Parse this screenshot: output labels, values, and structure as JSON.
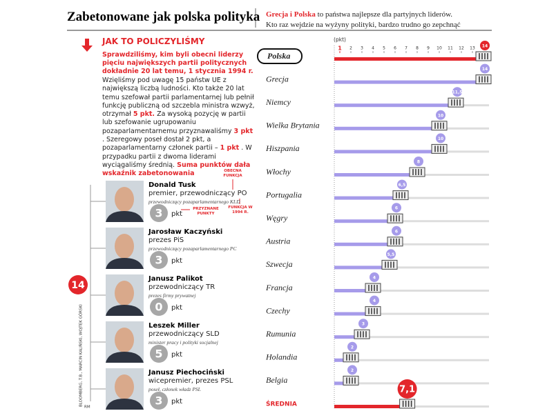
{
  "header": {
    "title": "Zabetonowane jak polska polityka",
    "subtitle": [
      "Grecja i Polska",
      "to państwa najlepsze dla partyjnych liderów.",
      "Kto raz wejdzie na wyżyny polityki, bardzo trudno go zepchnąć"
    ]
  },
  "method": {
    "heading": "JAK TO POLICZYLIŚMY",
    "intro": "Sprawdziliśmy, kim byli obecni liderzy pięciu największych partii politycznych dokładnie 20 lat temu, 1 stycznia 1994 r.",
    "body": [
      {
        "text": "Wzięliśmy pod uwagę 15 państw UE z największą liczbą ludności. Kto także 20 lat temu szefował partii parlamentarnej lub pełnił funkcję publiczną od szczebla ministra wzwyż, otrzymał",
        "highlight": false
      },
      {
        "text": "5 pkt.",
        "highlight": true
      },
      {
        "text": "Za wysoką pozycję w partii lub szefowanie ugrupowaniu pozaparlamentarnemu przyznawaliśmy",
        "highlight": false
      },
      {
        "text": "3 pkt",
        "highlight": true
      },
      {
        "text": ". Szeregowy poseł dostał 2 pkt, a pozaparlamentarny członek partii –",
        "highlight": false
      },
      {
        "text": "1 pkt",
        "highlight": true
      },
      {
        "text": ". W przypadku partii z dwoma liderami wyciągaliśmy średnią.",
        "highlight": false
      },
      {
        "text": "Suma punktów dała wskaźnik zabetonowania",
        "highlight": true
      }
    ]
  },
  "leaders": {
    "total": 14,
    "unit": "pkt",
    "annotations": {
      "current": "OBECNA FUNKCJA",
      "points": "PRZYZNANE PUNKTY",
      "role_1994": "FUNKCJA W 1994 R."
    },
    "items": [
      {
        "name": "Donald Tusk",
        "role": "premier, przewodniczący PO",
        "role_1994": "przewodniczący pozaparlamentarnego KLD",
        "points": 3
      },
      {
        "name": "Jarosław Kaczyński",
        "role": "prezes PiS",
        "role_1994": "przewodniczący pozaparlamentarnego PC",
        "points": 3
      },
      {
        "name": "Janusz Palikot",
        "role": "przewodniczący TR",
        "role_1994": "prezes firmy prywatnej",
        "points": 0
      },
      {
        "name": "Leszek Miller",
        "role": "przewodniczący SLD",
        "role_1994": "minister pracy i polityki socjalnej",
        "points": 5
      },
      {
        "name": "Janusz Piechociński",
        "role": "wicepremier, prezes PSL",
        "role_1994": "poseł, członek władz PSL",
        "points": 3
      }
    ]
  },
  "credit": "BLOOMBERG, T.B., MARCIN KALIŃSKI, WOJTEK GÓRSKI",
  "initials": "RM",
  "chart_data": {
    "type": "bar",
    "orientation": "horizontal",
    "x_label": "(pkt)",
    "categories": [
      "Polska",
      "Grecja",
      "Niemcy",
      "Wielka Brytania",
      "Hiszpania",
      "Włochy",
      "Portugalia",
      "Węgry",
      "Austria",
      "Szwecja",
      "Francja",
      "Czechy",
      "Rumunia",
      "Holandia",
      "Belgia",
      "ŚREDNIA"
    ],
    "values": [
      14,
      14,
      11.5,
      10,
      10,
      8,
      6.5,
      6,
      6,
      5.5,
      4,
      4,
      3,
      2,
      2,
      7.1
    ],
    "value_labels": [
      "14",
      "14",
      "11,5",
      "10",
      "10",
      "8",
      "6,5",
      "6",
      "6",
      "5,5",
      "4",
      "4",
      "3",
      "2",
      "2",
      "7,1"
    ],
    "colors": [
      "#e3262b",
      "#a69bea",
      "#a69bea",
      "#a69bea",
      "#a69bea",
      "#a69bea",
      "#a69bea",
      "#a69bea",
      "#a69bea",
      "#a69bea",
      "#a69bea",
      "#a69bea",
      "#a69bea",
      "#a69bea",
      "#a69bea",
      "#e3262b"
    ],
    "xlim": [
      0.5,
      14.5
    ],
    "xticks": [
      1,
      2,
      3,
      4,
      5,
      6,
      7,
      8,
      9,
      10,
      11,
      12,
      13
    ]
  }
}
